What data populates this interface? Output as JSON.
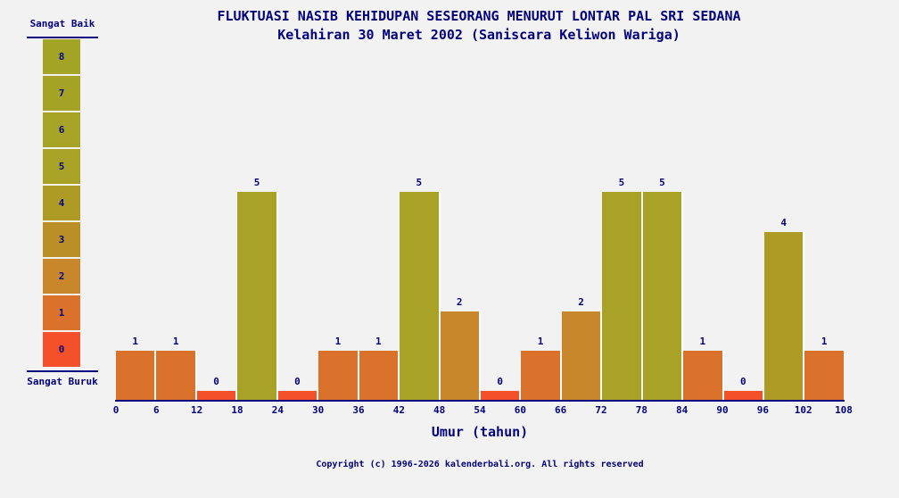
{
  "title": {
    "line1": "FLUKTUASI NASIB KEHIDUPAN SESEORANG MENURUT LONTAR PAL SRI SEDANA",
    "line2": "Kelahiran 30 Maret 2002 (Saniscara Keliwon Wariga)"
  },
  "legend": {
    "top_label": "Sangat Baik",
    "bottom_label": "Sangat Buruk",
    "levels": [
      {
        "value": "8",
        "color": "#a3a425"
      },
      {
        "value": "7",
        "color": "#a5a326"
      },
      {
        "value": "6",
        "color": "#a6a326"
      },
      {
        "value": "5",
        "color": "#a8a226"
      },
      {
        "value": "4",
        "color": "#ae9b26"
      },
      {
        "value": "3",
        "color": "#ba8f27"
      },
      {
        "value": "2",
        "color": "#c9872b"
      },
      {
        "value": "1",
        "color": "#da722c"
      },
      {
        "value": "0",
        "color": "#f4512a"
      }
    ]
  },
  "chart_data": {
    "type": "bar",
    "title": "FLUKTUASI NASIB KEHIDUPAN SESEORANG MENURUT LONTAR PAL SRI SEDANA",
    "subtitle": "Kelahiran 30 Maret 2002 (Saniscara Keliwon Wariga)",
    "xlabel": "Umur (tahun)",
    "ylabel": "",
    "ylim": [
      0,
      8
    ],
    "grid": false,
    "legend_position": "left",
    "scale_max_label": "Sangat Baik",
    "scale_min_label": "Sangat Buruk",
    "categories": [
      "0-6",
      "6-12",
      "12-18",
      "18-24",
      "24-30",
      "30-36",
      "36-42",
      "42-48",
      "48-54",
      "54-60",
      "60-66",
      "66-72",
      "72-78",
      "78-84",
      "84-90",
      "90-96",
      "96-102",
      "102-108"
    ],
    "values": [
      1,
      1,
      0,
      5,
      0,
      1,
      1,
      5,
      2,
      0,
      1,
      2,
      5,
      5,
      1,
      0,
      4,
      1
    ],
    "x_ticks": [
      0,
      6,
      12,
      18,
      24,
      30,
      36,
      42,
      48,
      54,
      60,
      66,
      72,
      78,
      84,
      90,
      96,
      102,
      108
    ],
    "value_colors": {
      "0": "#f4512a",
      "1": "#da722c",
      "2": "#c9872b",
      "3": "#ba8f27",
      "4": "#ae9b26",
      "5": "#a8a226",
      "6": "#a6a326",
      "7": "#a5a326",
      "8": "#a3a425"
    }
  },
  "footer": {
    "copyright": "Copyright (c) 1996-2026 kalenderbali.org. All rights reserved"
  },
  "colors": {
    "background": "#f2f2f2",
    "text": "#000080",
    "separator": "#ffffff"
  }
}
